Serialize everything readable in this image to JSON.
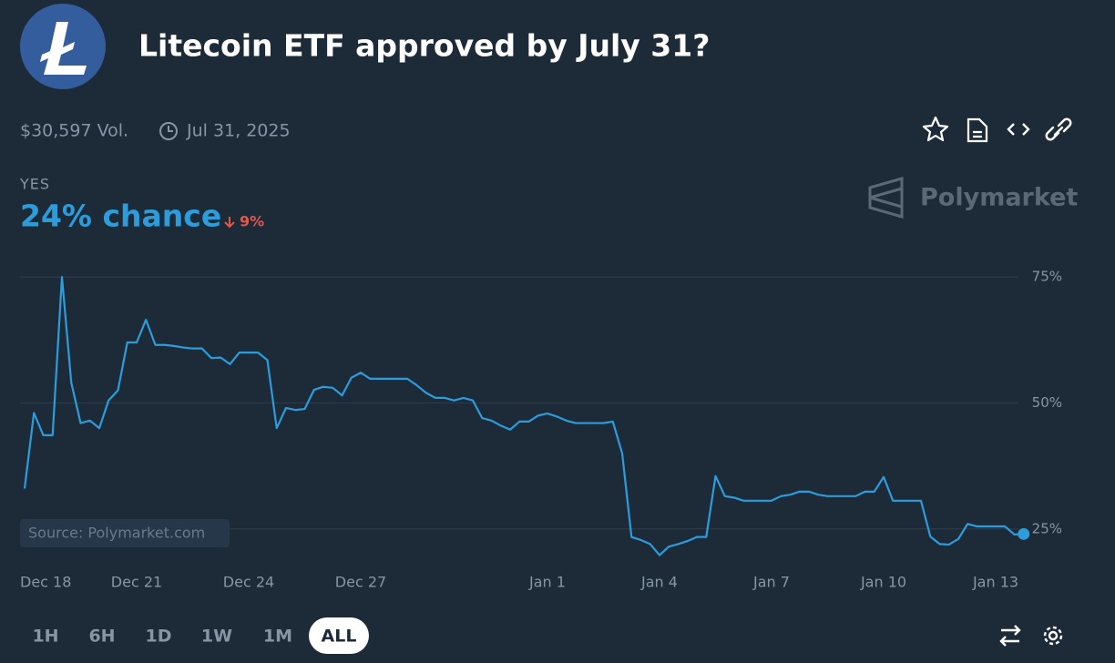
{
  "header": {
    "title": "Litecoin ETF approved by July 31?",
    "volume": "$30,597 Vol.",
    "end_date": "Jul 31, 2025"
  },
  "outcome": {
    "label": "YES",
    "chance": "24% chance",
    "change": "9%"
  },
  "brand": "Polymarket",
  "source": "Source: Polymarket.com",
  "ranges": [
    "1H",
    "6H",
    "1D",
    "1W",
    "1M",
    "ALL"
  ],
  "selected_range": 5,
  "chart_data": {
    "type": "line",
    "color": "#2d9cdb",
    "grid": true,
    "ylim": [
      19,
      77
    ],
    "yticks": [
      {
        "value": 25,
        "label": "25%"
      },
      {
        "value": 50,
        "label": "50%"
      },
      {
        "value": 75,
        "label": "75%"
      }
    ],
    "categories": [
      "Dec 18",
      null,
      null,
      null,
      null,
      null,
      null,
      null,
      null,
      null,
      null,
      null,
      "Dec 21",
      null,
      null,
      null,
      null,
      null,
      null,
      null,
      null,
      null,
      null,
      null,
      "Dec 24",
      null,
      null,
      null,
      null,
      null,
      null,
      null,
      null,
      null,
      null,
      null,
      "Dec 27",
      null,
      null,
      null,
      null,
      null,
      null,
      null,
      null,
      null,
      null,
      null,
      null,
      null,
      null,
      null,
      null,
      null,
      null,
      null,
      "Jan 1",
      null,
      null,
      null,
      null,
      null,
      null,
      null,
      null,
      null,
      null,
      null,
      "Jan 4",
      null,
      null,
      null,
      null,
      null,
      null,
      null,
      null,
      null,
      null,
      null,
      "Jan 7",
      null,
      null,
      null,
      null,
      null,
      null,
      null,
      null,
      null,
      null,
      null,
      "Jan 10",
      null,
      null,
      null,
      null,
      null,
      null,
      null,
      null,
      null,
      null,
      null,
      "Jan 13",
      null,
      null,
      null
    ],
    "values": [
      33,
      48,
      43.6,
      43.6,
      75,
      54,
      46,
      46.5,
      45,
      50.5,
      52.5,
      62,
      62,
      66.5,
      61.5,
      61.5,
      61.3,
      61,
      60.8,
      60.8,
      58.9,
      59,
      57.7,
      60,
      60,
      60,
      58.5,
      45,
      49,
      48.6,
      48.8,
      52.6,
      53.2,
      53,
      51.5,
      55,
      56,
      54.8,
      54.8,
      54.8,
      54.8,
      54.8,
      53.5,
      52,
      51,
      51,
      50.5,
      51,
      50.5,
      47,
      46.5,
      45.5,
      44.7,
      46.3,
      46.3,
      47.5,
      47.9,
      47.3,
      46.5,
      46,
      46,
      46,
      46,
      46.3,
      40,
      23.4,
      22.8,
      22,
      19.8,
      21.5,
      22,
      22.6,
      23.4,
      23.4,
      35.5,
      31.5,
      31.2,
      30.6,
      30.6,
      30.6,
      30.6,
      31.5,
      31.8,
      32.4,
      32.4,
      31.8,
      31.5,
      31.5,
      31.5,
      31.5,
      32.4,
      32.4,
      35.3,
      30.6,
      30.6,
      30.6,
      30.6,
      23.5,
      22,
      21.9,
      23,
      26,
      25.5,
      25.5,
      25.5,
      25.5,
      23.9,
      24
    ]
  }
}
